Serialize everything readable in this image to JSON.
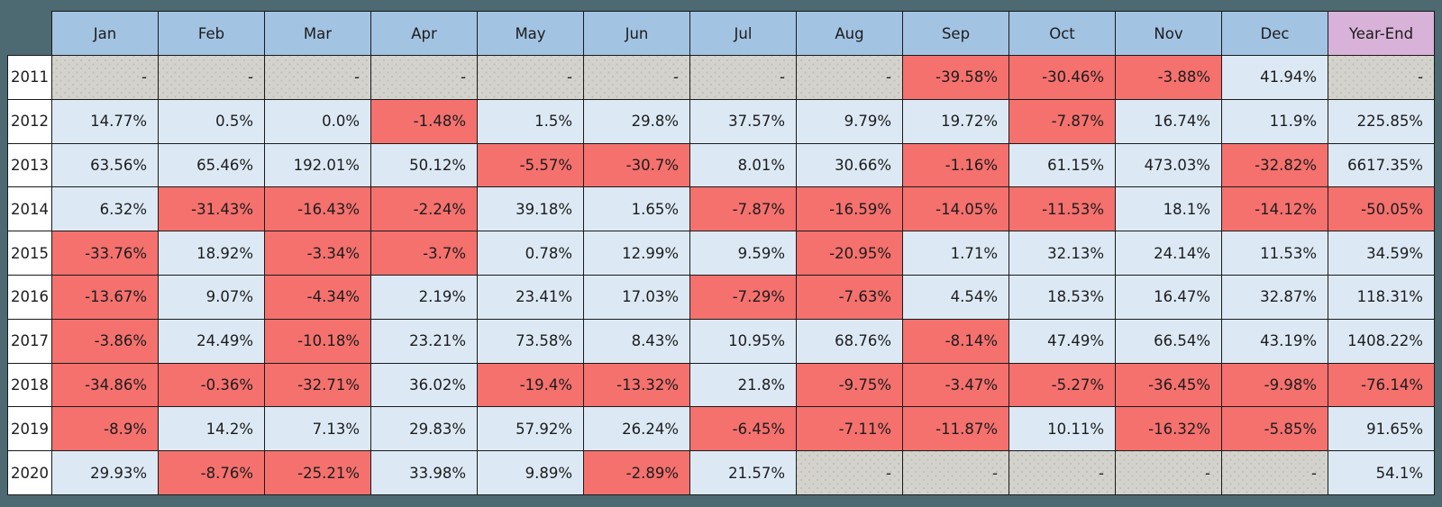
{
  "colors": {
    "frame": "#4d6972",
    "border": "#1a1a1a",
    "text": "#1c1c1c",
    "header": "#a3c3e3",
    "year_end_header": "#d8b2d8",
    "positive": "#dce9f5",
    "negative": "#f4716e",
    "missing": "#d4d2cc",
    "missing_dot": "#c0beb8",
    "row_label_bg": "#ffffff"
  },
  "chart_data": {
    "type": "table",
    "columns": [
      "Jan",
      "Feb",
      "Mar",
      "Apr",
      "May",
      "Jun",
      "Jul",
      "Aug",
      "Sep",
      "Oct",
      "Nov",
      "Dec",
      "Year-End"
    ],
    "row_labels": [
      "2011",
      "2012",
      "2013",
      "2014",
      "2015",
      "2016",
      "2017",
      "2018",
      "2019",
      "2020"
    ],
    "rows": [
      [
        "-",
        "-",
        "-",
        "-",
        "-",
        "-",
        "-",
        "-",
        "-39.58%",
        "-30.46%",
        "-3.88%",
        "41.94%",
        "-"
      ],
      [
        "14.77%",
        "0.5%",
        "0.0%",
        "-1.48%",
        "1.5%",
        "29.8%",
        "37.57%",
        "9.79%",
        "19.72%",
        "-7.87%",
        "16.74%",
        "11.9%",
        "225.85%"
      ],
      [
        "63.56%",
        "65.46%",
        "192.01%",
        "50.12%",
        "-5.57%",
        "-30.7%",
        "8.01%",
        "30.66%",
        "-1.16%",
        "61.15%",
        "473.03%",
        "-32.82%",
        "6617.35%"
      ],
      [
        "6.32%",
        "-31.43%",
        "-16.43%",
        "-2.24%",
        "39.18%",
        "1.65%",
        "-7.87%",
        "-16.59%",
        "-14.05%",
        "-11.53%",
        "18.1%",
        "-14.12%",
        "-50.05%"
      ],
      [
        "-33.76%",
        "18.92%",
        "-3.34%",
        "-3.7%",
        "0.78%",
        "12.99%",
        "9.59%",
        "-20.95%",
        "1.71%",
        "32.13%",
        "24.14%",
        "11.53%",
        "34.59%"
      ],
      [
        "-13.67%",
        "9.07%",
        "-4.34%",
        "2.19%",
        "23.41%",
        "17.03%",
        "-7.29%",
        "-7.63%",
        "4.54%",
        "18.53%",
        "16.47%",
        "32.87%",
        "118.31%"
      ],
      [
        "-3.86%",
        "24.49%",
        "-10.18%",
        "23.21%",
        "73.58%",
        "8.43%",
        "10.95%",
        "68.76%",
        "-8.14%",
        "47.49%",
        "66.54%",
        "43.19%",
        "1408.22%"
      ],
      [
        "-34.86%",
        "-0.36%",
        "-32.71%",
        "36.02%",
        "-19.4%",
        "-13.32%",
        "21.8%",
        "-9.75%",
        "-3.47%",
        "-5.27%",
        "-36.45%",
        "-9.98%",
        "-76.14%"
      ],
      [
        "-8.9%",
        "14.2%",
        "7.13%",
        "29.83%",
        "57.92%",
        "26.24%",
        "-6.45%",
        "-7.11%",
        "-11.87%",
        "10.11%",
        "-16.32%",
        "-5.85%",
        "91.65%"
      ],
      [
        "29.93%",
        "-8.76%",
        "-25.21%",
        "33.98%",
        "9.89%",
        "-2.89%",
        "21.57%",
        "-",
        "-",
        "-",
        "-",
        "-",
        "54.1%"
      ]
    ],
    "missing_marker": "-",
    "legend": {
      "positive_cell": "light blue",
      "negative_cell": "red",
      "missing_cell": "gray dotted hatch"
    }
  }
}
